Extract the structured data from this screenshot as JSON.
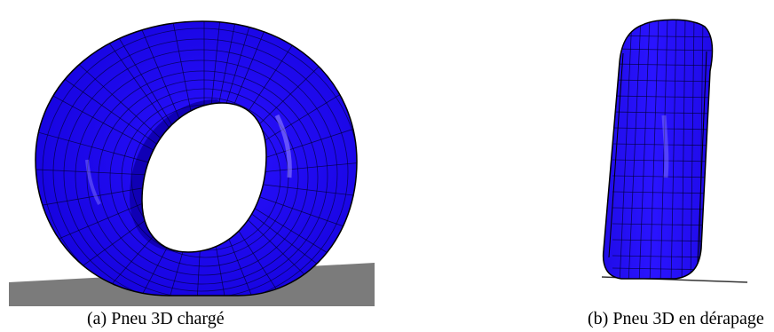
{
  "figure": {
    "panels": [
      {
        "id": "a",
        "caption": "(a) Pneu 3D chargé",
        "tire_color": "#1b05f2",
        "ground_color": "#7b7b7b"
      },
      {
        "id": "b",
        "caption": "(b) Pneu 3D en dérapage",
        "tire_color": "#1b05f2",
        "ground_color": "#333333"
      }
    ]
  }
}
